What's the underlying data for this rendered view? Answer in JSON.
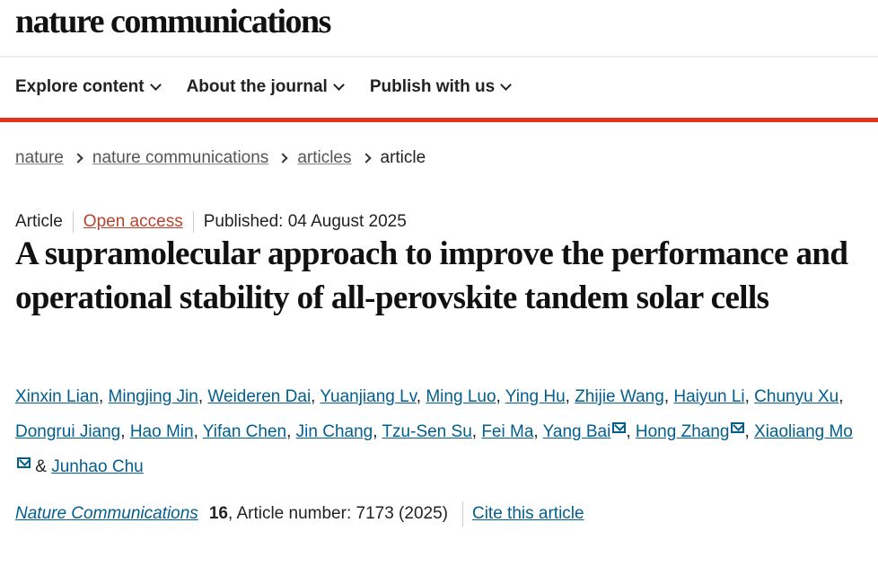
{
  "logo": "nature communications",
  "nav": [
    "Explore content",
    "About the journal",
    "Publish with us"
  ],
  "breadcrumb": [
    "nature",
    "nature communications",
    "articles",
    "article"
  ],
  "meta": {
    "type": "Article",
    "access": "Open access",
    "published": "Published: 04 August 2025"
  },
  "title": "A supramolecular approach to improve the performance and operational stability of all-perovskite tandem solar cells",
  "authors": [
    {
      "name": "Xinxin Lian"
    },
    {
      "name": "Mingjing Jin"
    },
    {
      "name": "Weideren Dai"
    },
    {
      "name": "Yuanjiang Lv"
    },
    {
      "name": "Ming Luo"
    },
    {
      "name": "Ying Hu"
    },
    {
      "name": "Zhijie Wang"
    },
    {
      "name": "Haiyun Li"
    },
    {
      "name": "Chunyu Xu"
    },
    {
      "name": "Dongrui Jiang"
    },
    {
      "name": "Hao Min"
    },
    {
      "name": "Yifan Chen"
    },
    {
      "name": "Jin Chang"
    },
    {
      "name": "Tzu-Sen Su"
    },
    {
      "name": "Fei Ma"
    },
    {
      "name": "Yang Bai",
      "mail": true
    },
    {
      "name": "Hong Zhang",
      "mail": true
    },
    {
      "name": "Xiaoliang Mo",
      "mail": true
    },
    {
      "name": "Junhao Chu"
    }
  ],
  "citation": {
    "journal": "Nature Communications",
    "volume": "16",
    "article_number": ", Article number: 7173 (2025)",
    "cite_label": "Cite this article"
  },
  "colors": {
    "link": "#025e8d",
    "accent_bar": "#e0361f",
    "open_access": "#b8432f"
  }
}
